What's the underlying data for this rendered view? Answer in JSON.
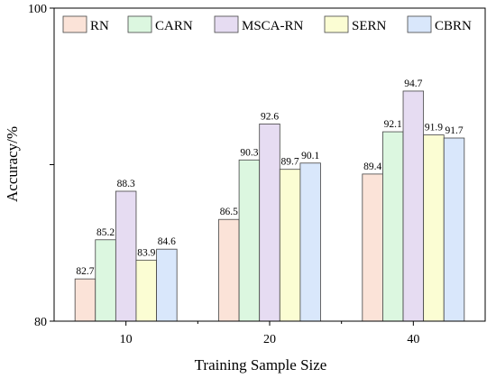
{
  "chart_data": {
    "type": "bar",
    "xlabel": "Training Sample Size",
    "ylabel": "Accuracy/%",
    "categories": [
      "10",
      "20",
      "40"
    ],
    "ylim": [
      80,
      100
    ],
    "yticks": [
      "80",
      "100"
    ],
    "legend_position": "top",
    "series": [
      {
        "name": "RN",
        "color": "#fbe3d8",
        "values": [
          82.7,
          86.5,
          89.4
        ]
      },
      {
        "name": "CARN",
        "color": "#dcf7e0",
        "values": [
          85.2,
          90.3,
          92.1
        ]
      },
      {
        "name": "MSCA-RN",
        "color": "#e6dcf2",
        "values": [
          88.3,
          92.6,
          94.7
        ]
      },
      {
        "name": "SERN",
        "color": "#fbfdd3",
        "values": [
          83.9,
          89.7,
          91.9
        ]
      },
      {
        "name": "CBRN",
        "color": "#d9e7fb",
        "values": [
          84.6,
          90.1,
          91.7
        ]
      }
    ]
  }
}
